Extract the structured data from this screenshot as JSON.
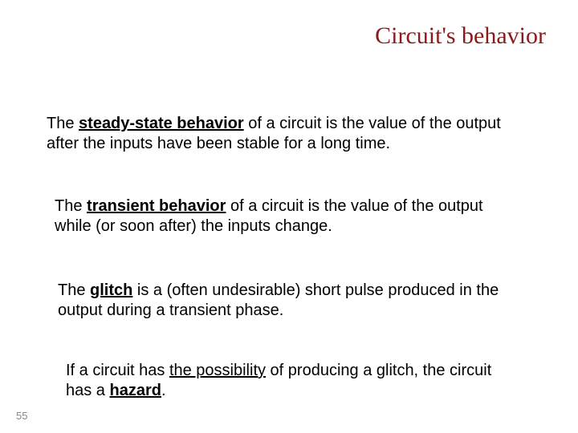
{
  "title": "Circuit's behavior",
  "paragraphs": {
    "p1": {
      "prefix": "The ",
      "term": "steady-state behavior",
      "rest": " of a circuit is the value of the output after the inputs have been stable for a long time."
    },
    "p2": {
      "prefix": "The ",
      "term": "transient behavior",
      "rest": " of a circuit is the value of the output while (or soon after) the inputs change."
    },
    "p3": {
      "prefix": "The ",
      "term": "glitch",
      "rest": " is a (often undesirable) short pulse produced in the output during a transient phase."
    },
    "p4": {
      "prefix": "If a circuit has ",
      "mid_ul": "the possibility",
      "mid2": " of producing a glitch, the circuit has a ",
      "term": "hazard",
      "tail": "."
    }
  },
  "page_number": "55",
  "colors": {
    "title_color": "#8b1a1a",
    "text_color": "#000000",
    "background": "#ffffff",
    "pagenum_color": "#888888"
  },
  "fonts": {
    "title_fontsize": 30,
    "body_fontsize": 20,
    "pagenum_fontsize": 13
  }
}
